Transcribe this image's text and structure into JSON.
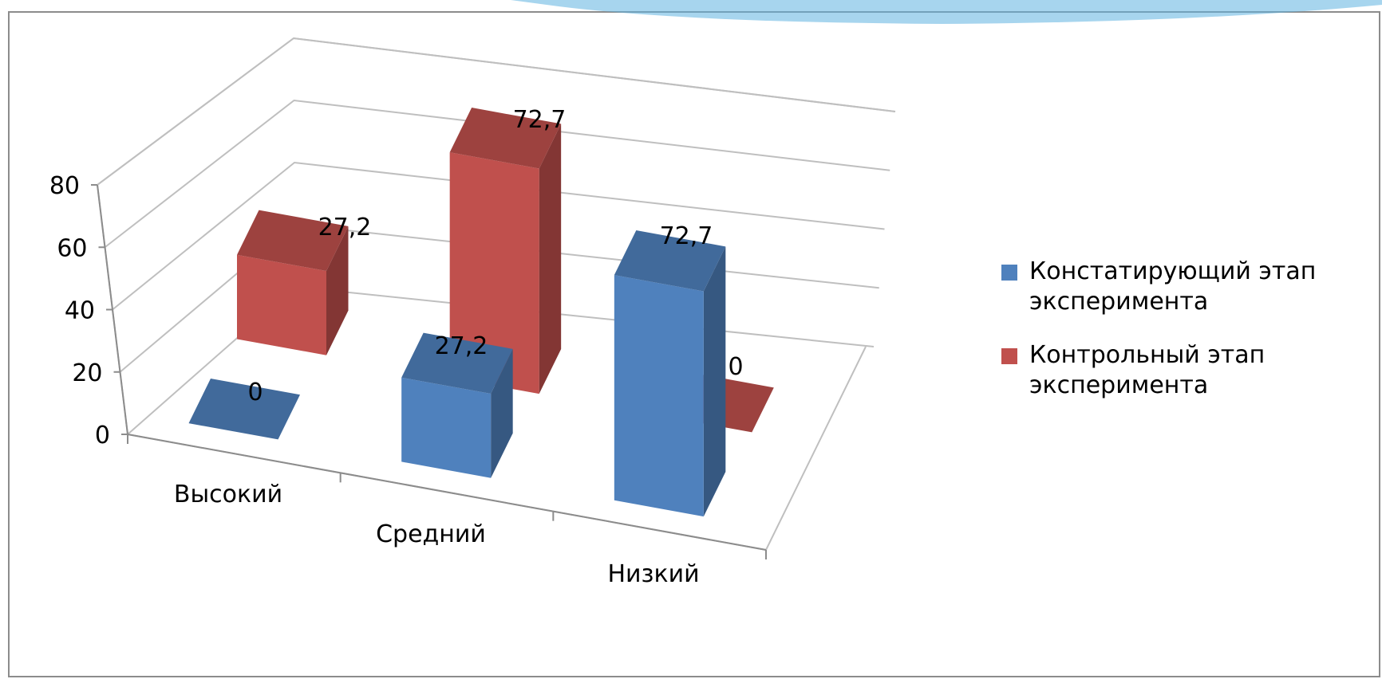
{
  "chart_data": {
    "type": "bar",
    "categories": [
      "Высокий",
      "Средний",
      "Низкий"
    ],
    "series": [
      {
        "name": "Констатирующий этап эксперимента",
        "values": [
          0,
          27.2,
          72.7
        ],
        "labels": [
          "0",
          "27,2",
          "72,7"
        ],
        "color": "#4f81bd"
      },
      {
        "name": "Контрольный этап эксперимента",
        "values": [
          27.2,
          72.7,
          0
        ],
        "labels": [
          "27,2",
          "72,7",
          "0"
        ],
        "color": "#c0504d"
      }
    ],
    "yticks": [
      "0",
      "20",
      "40",
      "60",
      "80"
    ],
    "ylim": [
      0,
      80
    ],
    "grid": true,
    "legend": "right",
    "title": "",
    "xlabel": "",
    "ylabel": ""
  },
  "decor": {
    "top_band_color": "#5fb3e0"
  }
}
